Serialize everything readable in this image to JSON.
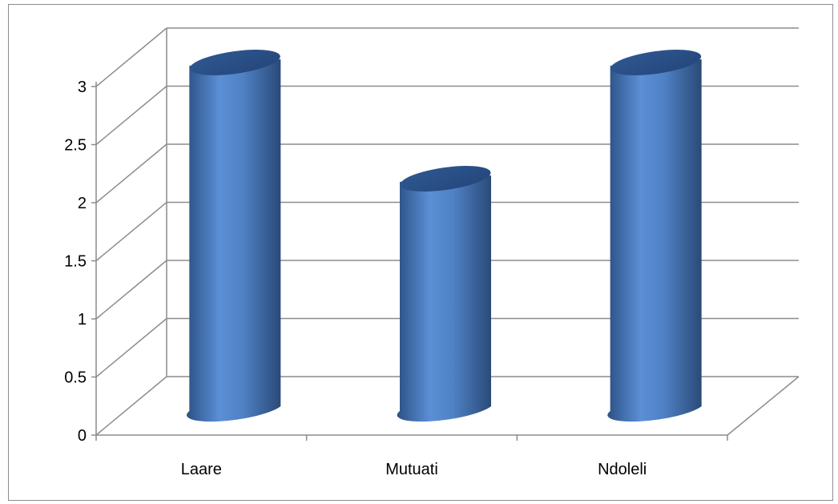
{
  "chart_data": {
    "type": "bar",
    "style": "3d-cylinder",
    "categories": [
      "Laare",
      "Mutuati",
      "Ndoleli"
    ],
    "values": [
      3,
      2,
      3
    ],
    "title": "",
    "xlabel": "",
    "ylabel": "",
    "ylim": [
      0,
      3
    ],
    "yticks": [
      "0",
      "0.5",
      "1",
      "1.5",
      "2",
      "2.5",
      "3"
    ],
    "grid": true,
    "legend": "none",
    "bar_color": "#4f81bd"
  }
}
